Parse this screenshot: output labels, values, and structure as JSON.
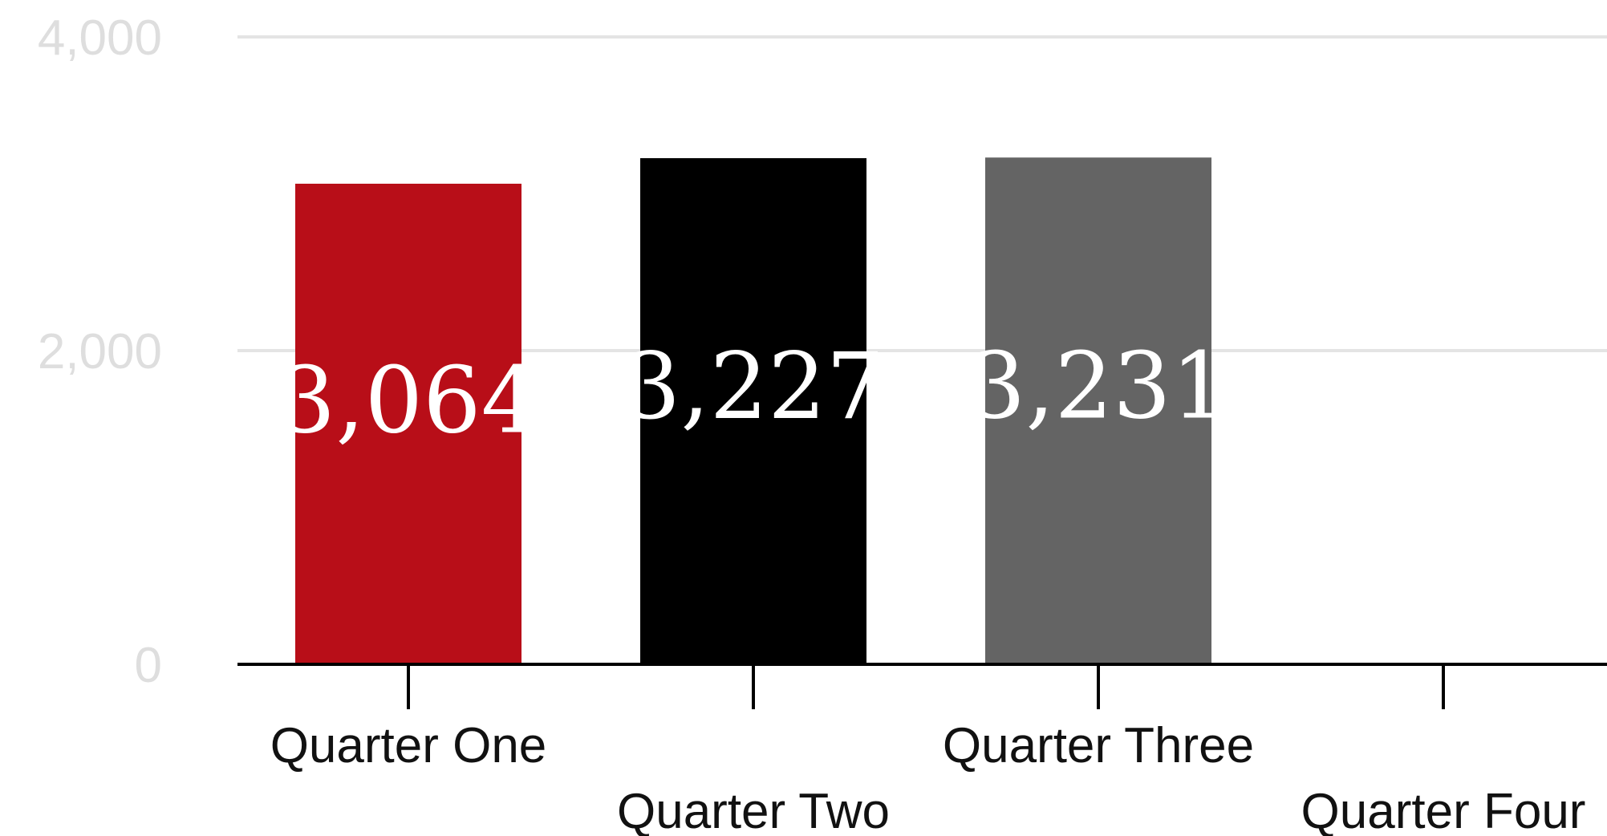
{
  "chart_data": {
    "type": "bar",
    "categories": [
      "Quarter One",
      "Quarter Two",
      "Quarter Three",
      "Quarter Four"
    ],
    "values": [
      3064,
      3227,
      3231,
      null
    ],
    "value_labels": [
      "3,064",
      "3,227",
      "3,231",
      ""
    ],
    "bar_colors": [
      "#b80e18",
      "#000000",
      "#646464",
      "#cccccc"
    ],
    "title": "",
    "xlabel": "",
    "ylabel": "",
    "ylim": [
      0,
      4000
    ],
    "yticks": [
      0,
      2000,
      4000
    ],
    "ytick_labels": [
      "0",
      "2,000",
      "4,000"
    ],
    "grid": true,
    "legend": "none"
  }
}
